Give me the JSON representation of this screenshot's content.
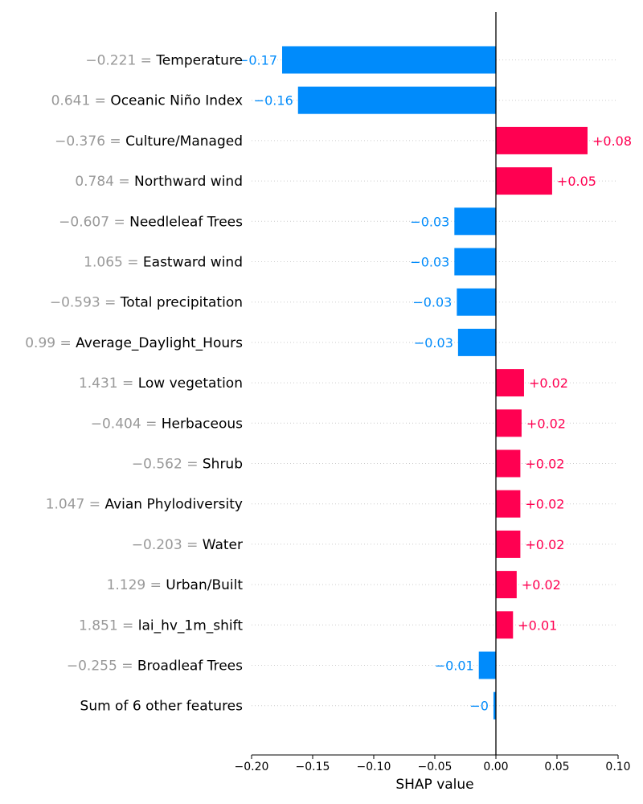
{
  "chart_data": {
    "type": "bar",
    "orientation": "horizontal",
    "xlabel": "SHAP value",
    "xlim": [
      -0.2,
      0.1
    ],
    "xticks": [
      -0.2,
      -0.15,
      -0.1,
      -0.05,
      0.0,
      0.05,
      0.1
    ],
    "xtick_labels": [
      "−0.20",
      "−0.15",
      "−0.10",
      "−0.05",
      "0.00",
      "0.05",
      "0.10"
    ],
    "grid": "dotted horizontal row lines",
    "colors": {
      "positive": "#ff0051",
      "negative": "#008bfb",
      "feature_value": "#999999",
      "feature_name": "#000000"
    },
    "rows": [
      {
        "feature_value": "−0.221 =",
        "feature": "Temperature",
        "value": -0.175,
        "label": "−0.17"
      },
      {
        "feature_value": "0.641 =",
        "feature": "Oceanic Niño Index",
        "value": -0.162,
        "label": "−0.16"
      },
      {
        "feature_value": "−0.376 =",
        "feature": "Culture/Managed",
        "value": 0.075,
        "label": "+0.08"
      },
      {
        "feature_value": "0.784 =",
        "feature": "Northward wind",
        "value": 0.046,
        "label": "+0.05"
      },
      {
        "feature_value": "−0.607 =",
        "feature": "Needleleaf Trees",
        "value": -0.034,
        "label": "−0.03"
      },
      {
        "feature_value": "1.065 =",
        "feature": "Eastward wind",
        "value": -0.034,
        "label": "−0.03"
      },
      {
        "feature_value": "−0.593 =",
        "feature": "Total precipitation",
        "value": -0.032,
        "label": "−0.03"
      },
      {
        "feature_value": "0.99 =",
        "feature": "Average_Daylight_Hours",
        "value": -0.031,
        "label": "−0.03"
      },
      {
        "feature_value": "1.431 =",
        "feature": "Low vegetation",
        "value": 0.023,
        "label": "+0.02"
      },
      {
        "feature_value": "−0.404 =",
        "feature": "Herbaceous",
        "value": 0.021,
        "label": "+0.02"
      },
      {
        "feature_value": "−0.562 =",
        "feature": "Shrub",
        "value": 0.02,
        "label": "+0.02"
      },
      {
        "feature_value": "1.047 =",
        "feature": "Avian Phylodiversity",
        "value": 0.02,
        "label": "+0.02"
      },
      {
        "feature_value": "−0.203 =",
        "feature": "Water",
        "value": 0.02,
        "label": "+0.02"
      },
      {
        "feature_value": "1.129 =",
        "feature": "Urban/Built",
        "value": 0.017,
        "label": "+0.02"
      },
      {
        "feature_value": "1.851 =",
        "feature": "lai_hv_1m_shift",
        "value": 0.014,
        "label": "+0.01"
      },
      {
        "feature_value": "−0.255 =",
        "feature": "Broadleaf Trees",
        "value": -0.014,
        "label": "−0.01"
      },
      {
        "feature_value": "",
        "feature": "Sum of 6 other features",
        "value": -0.002,
        "label": "−0"
      }
    ]
  }
}
